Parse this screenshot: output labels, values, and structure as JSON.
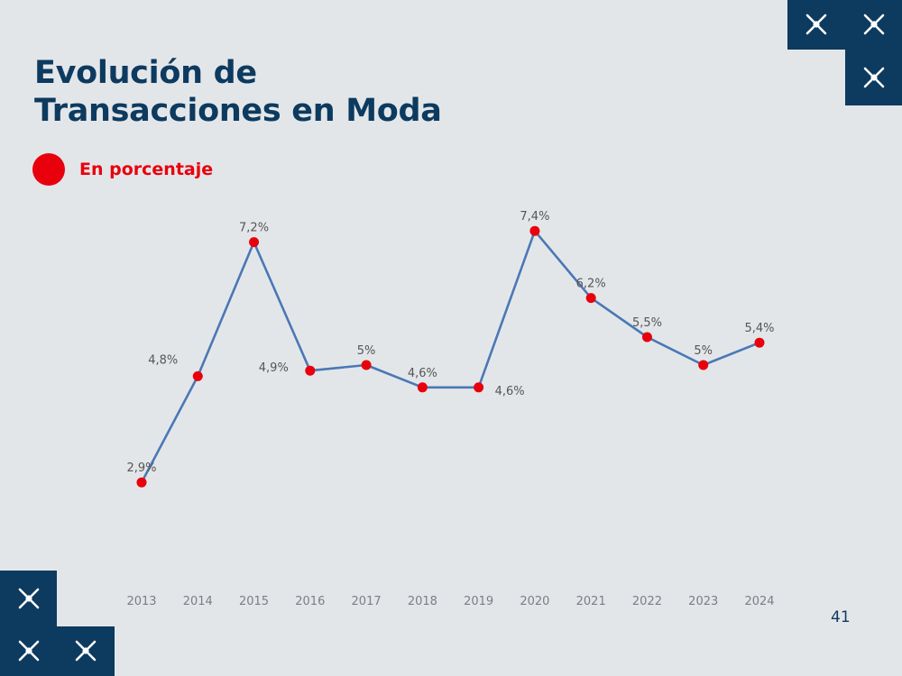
{
  "slide": {
    "title_line1": "Evolución de",
    "title_line2": "Transacciones en Moda",
    "legend_label": "En porcentaje",
    "page_number": "41"
  },
  "colors": {
    "background": "#e3e6e9",
    "title": "#0d3a5f",
    "accent": "#e8000d",
    "line": "#4a78b5",
    "tile": "#0d3a5f",
    "label": "#555555"
  },
  "icons": [
    "sparkle-cross-icon"
  ],
  "chart_data": {
    "type": "line",
    "title": "Evolución de Transacciones en Moda",
    "subtitle": "En porcentaje",
    "xlabel": "",
    "ylabel": "",
    "grid": false,
    "ylim": [
      2,
      8
    ],
    "categories": [
      "2013",
      "2014",
      "2015",
      "2016",
      "2017",
      "2018",
      "2019",
      "2020",
      "2021",
      "2022",
      "2023",
      "2024"
    ],
    "series": [
      {
        "name": "En porcentaje",
        "values": [
          2.9,
          4.8,
          7.2,
          4.9,
          5.0,
          4.6,
          4.6,
          7.4,
          6.2,
          5.5,
          5.0,
          5.4
        ],
        "labels": [
          "2,9%",
          "4,8%",
          "7,2%",
          "4,9%",
          "5%",
          "4,6%",
          "4,6%",
          "7,4%",
          "6,2%",
          "5,5%",
          "5%",
          "5,4%"
        ],
        "label_positions": [
          "above",
          "left",
          "above",
          "left",
          "above",
          "above",
          "right",
          "above",
          "above",
          "above",
          "above",
          "above"
        ]
      }
    ]
  }
}
